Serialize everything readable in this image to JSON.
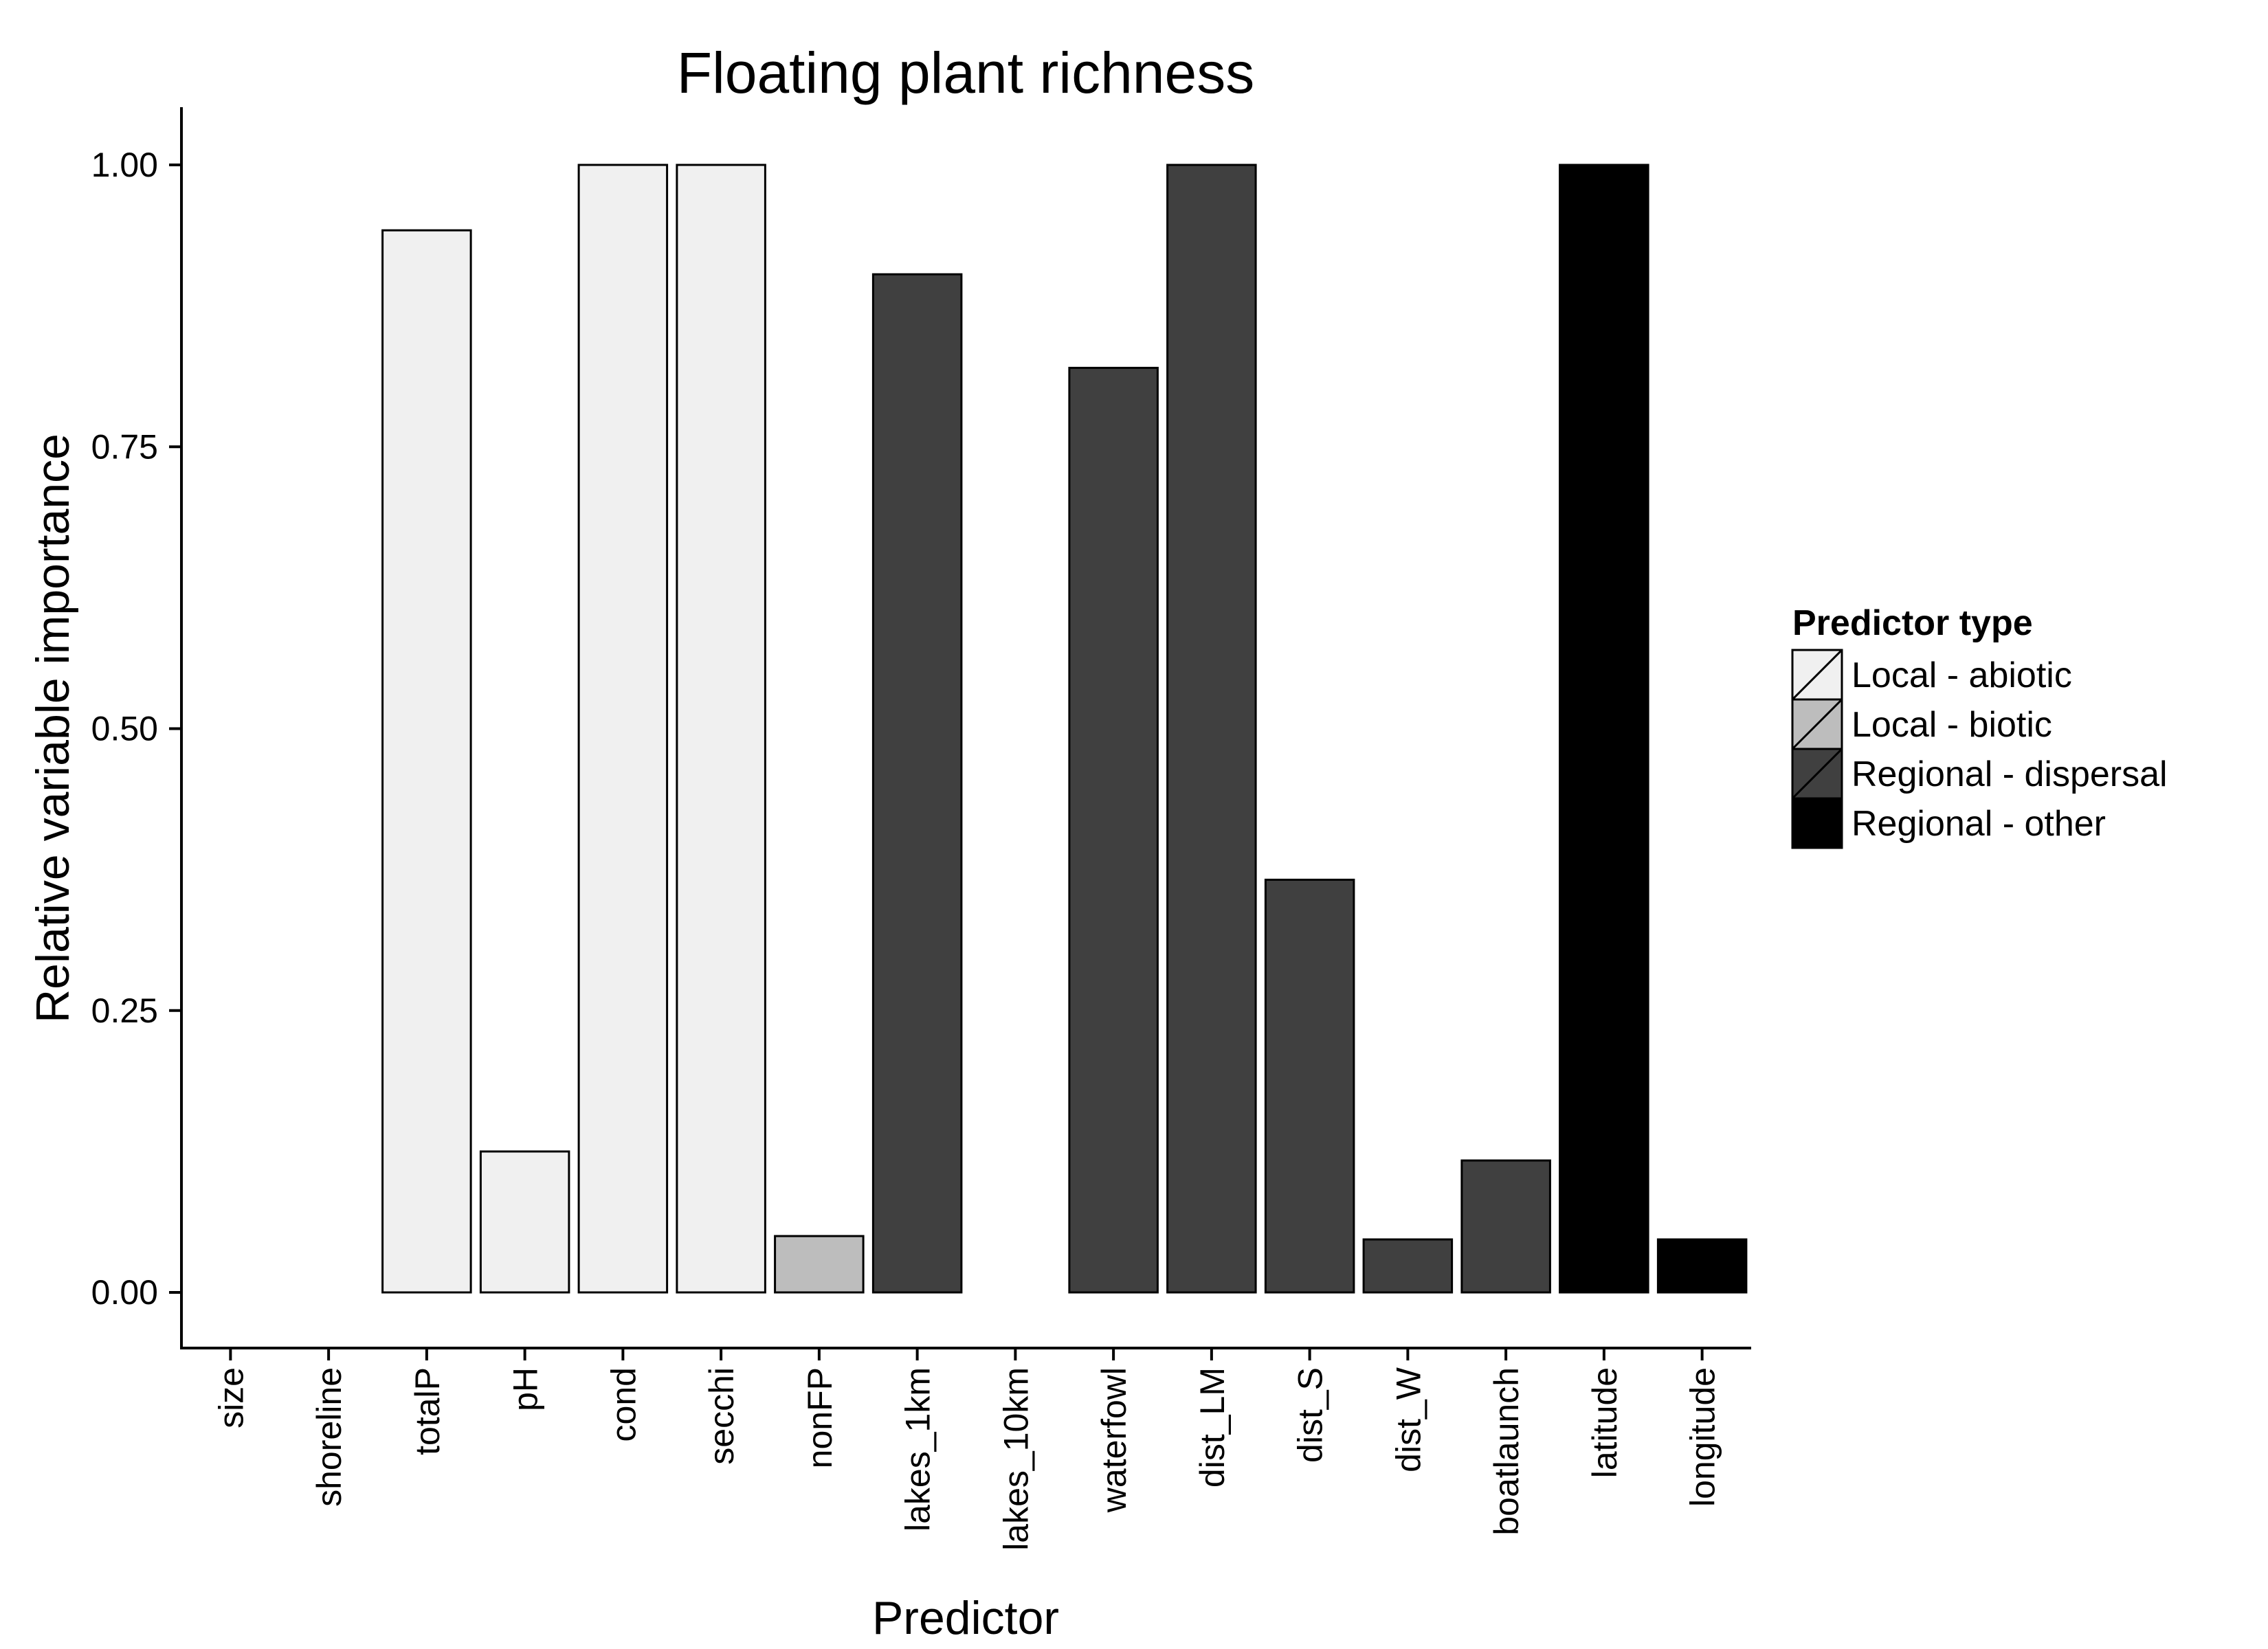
{
  "chart_data": {
    "type": "bar",
    "title": "Floating plant richness",
    "xlabel": "Predictor",
    "ylabel": "Relative variable importance",
    "ylim": [
      0,
      1.05
    ],
    "y_ticks": [
      "0.00",
      "0.25",
      "0.50",
      "0.75",
      "1.00"
    ],
    "y_tick_values": [
      0,
      0.25,
      0.5,
      0.75,
      1.0
    ],
    "categories": [
      "size",
      "shoreline",
      "totalP",
      "pH",
      "cond",
      "secchi",
      "nonFP",
      "lakes_1km",
      "lakes_10km",
      "waterfowl",
      "dist_LM",
      "dist_S",
      "dist_W",
      "boatlaunch",
      "latitude",
      "longitude"
    ],
    "values": [
      0,
      0,
      0.942,
      0.125,
      1.0,
      1.0,
      0.05,
      0.903,
      0,
      0.82,
      1.0,
      0.366,
      0.047,
      0.117,
      1.0,
      0.047
    ],
    "groups": [
      "Local - abiotic",
      "Local - abiotic",
      "Local - abiotic",
      "Local - abiotic",
      "Local - abiotic",
      "Local - abiotic",
      "Local - biotic",
      "Regional - dispersal",
      "Regional - dispersal",
      "Regional - dispersal",
      "Regional - dispersal",
      "Regional - dispersal",
      "Regional - dispersal",
      "Regional - dispersal",
      "Regional - other",
      "Regional - other"
    ],
    "legend": {
      "title": "Predictor type",
      "position": "right",
      "entries": [
        {
          "label": "Local - abiotic",
          "color": "#f0f0f0"
        },
        {
          "label": "Local - biotic",
          "color": "#bdbdbd"
        },
        {
          "label": "Regional - dispersal",
          "color": "#404040"
        },
        {
          "label": "Regional - other",
          "color": "#000000"
        }
      ]
    },
    "grid": false
  }
}
